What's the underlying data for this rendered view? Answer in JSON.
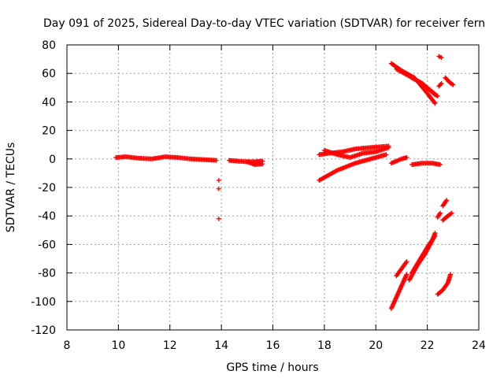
{
  "chart_data": {
    "type": "scatter",
    "title": "Day 091 of 2025, Sidereal Day-to-day VTEC variation (SDTVAR) for receiver fern",
    "xlabel": "GPS time / hours",
    "ylabel": "SDTVAR / TECUs",
    "xlim": [
      8,
      24
    ],
    "ylim": [
      -120,
      80
    ],
    "xticks": [
      8,
      10,
      12,
      14,
      16,
      18,
      20,
      22,
      24
    ],
    "yticks": [
      -120,
      -100,
      -80,
      -60,
      -40,
      -20,
      0,
      20,
      40,
      60,
      80
    ],
    "grid": true,
    "marker": "plus",
    "color": "#ff0000",
    "series": [
      {
        "segments": [
          [
            [
              9.9,
              1
            ],
            [
              10.3,
              1.5
            ],
            [
              10.8,
              0.5
            ],
            [
              11.3,
              0
            ],
            [
              11.8,
              1.5
            ],
            [
              12.3,
              1
            ],
            [
              12.8,
              0
            ],
            [
              13.3,
              -0.5
            ],
            [
              13.8,
              -1
            ]
          ],
          [
            [
              14.3,
              -1
            ],
            [
              14.6,
              -1.5
            ],
            [
              15.0,
              -2
            ],
            [
              15.3,
              -2
            ],
            [
              15.6,
              -1.5
            ]
          ],
          [
            [
              15.0,
              -2
            ],
            [
              15.3,
              -4
            ],
            [
              15.6,
              -3.5
            ]
          ],
          [
            [
              13.9,
              -15
            ]
          ],
          [
            [
              13.9,
              -21
            ]
          ],
          [
            [
              13.9,
              -42
            ]
          ],
          [
            [
              17.8,
              -15
            ],
            [
              18.5,
              -8
            ],
            [
              19.2,
              -3
            ],
            [
              19.8,
              0
            ],
            [
              20.4,
              3
            ]
          ],
          [
            [
              17.8,
              3
            ],
            [
              18.2,
              4
            ],
            [
              18.7,
              5
            ],
            [
              19.2,
              7
            ],
            [
              19.8,
              8
            ],
            [
              20.5,
              9
            ]
          ],
          [
            [
              18.0,
              6
            ],
            [
              18.5,
              3
            ],
            [
              19.0,
              1
            ],
            [
              19.5,
              4
            ],
            [
              20.0,
              5
            ],
            [
              20.5,
              8
            ]
          ],
          [
            [
              20.6,
              -3
            ],
            [
              21.0,
              0
            ],
            [
              21.2,
              1
            ]
          ],
          [
            [
              21.4,
              -4
            ],
            [
              21.8,
              -3
            ],
            [
              22.2,
              -3
            ],
            [
              22.5,
              -4
            ]
          ],
          [
            [
              20.6,
              67
            ],
            [
              21.0,
              62
            ],
            [
              21.5,
              57
            ],
            [
              22.0,
              46
            ],
            [
              22.3,
              39
            ]
          ],
          [
            [
              20.8,
              63
            ],
            [
              21.3,
              58
            ],
            [
              21.8,
              53
            ],
            [
              22.3,
              45
            ]
          ],
          [
            [
              21.4,
              57
            ],
            [
              21.8,
              53
            ],
            [
              22.2,
              47
            ],
            [
              22.4,
              44
            ]
          ],
          [
            [
              22.45,
              72
            ],
            [
              22.55,
              71
            ]
          ],
          [
            [
              22.7,
              57
            ],
            [
              22.85,
              54
            ],
            [
              23.0,
              52
            ]
          ],
          [
            [
              22.45,
              51
            ],
            [
              22.55,
              53
            ]
          ],
          [
            [
              20.6,
              -105
            ],
            [
              20.8,
              -97
            ],
            [
              21.0,
              -89
            ],
            [
              21.2,
              -81
            ]
          ],
          [
            [
              20.8,
              -82
            ],
            [
              21.0,
              -77
            ],
            [
              21.2,
              -72
            ]
          ],
          [
            [
              21.3,
              -85
            ],
            [
              21.6,
              -75
            ],
            [
              21.9,
              -67
            ],
            [
              22.2,
              -57
            ],
            [
              22.3,
              -52
            ]
          ],
          [
            [
              21.4,
              -80
            ],
            [
              21.7,
              -71
            ],
            [
              22.0,
              -62
            ],
            [
              22.3,
              -54
            ]
          ],
          [
            [
              22.4,
              -95
            ],
            [
              22.6,
              -92
            ],
            [
              22.8,
              -87
            ],
            [
              22.9,
              -81
            ]
          ],
          [
            [
              22.4,
              -41
            ],
            [
              22.5,
              -38
            ]
          ],
          [
            [
              22.6,
              -33
            ],
            [
              22.75,
              -29
            ]
          ],
          [
            [
              22.6,
              -43
            ],
            [
              22.8,
              -40
            ],
            [
              22.95,
              -38
            ]
          ]
        ]
      }
    ]
  }
}
